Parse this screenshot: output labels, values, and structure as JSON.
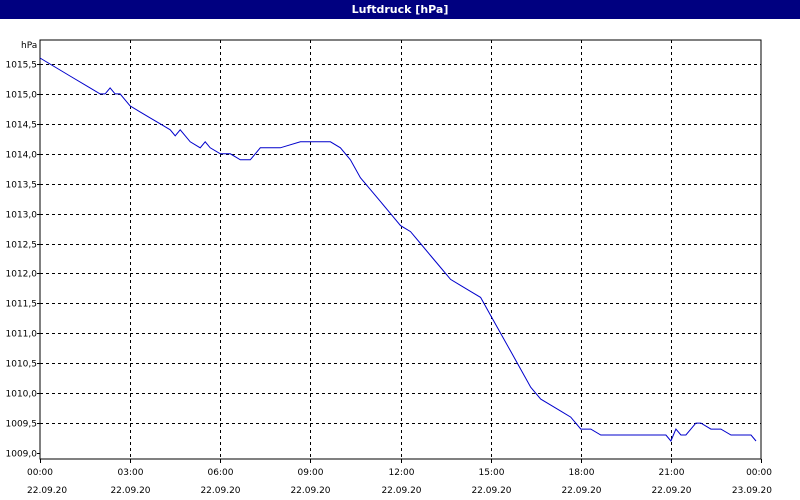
{
  "window": {
    "title": "Luftdruck [hPa]"
  },
  "colors": {
    "title_bar": "#000080",
    "title_text": "#ffffff",
    "series": "#0000cc",
    "grid": "#000000",
    "background": "#ffffff"
  },
  "chart_data": {
    "type": "line",
    "title": "Luftdruck [hPa]",
    "ylabel": "hPa",
    "xlabel": "",
    "grid": true,
    "ylim": [
      1009.0,
      1015.75
    ],
    "xlim": [
      "22.09.20 00:00",
      "23.09.20 00:00"
    ],
    "y_ticks": [
      "1009,0",
      "1009,5",
      "1010,0",
      "1010,5",
      "1011,0",
      "1011,5",
      "1012,0",
      "1012,5",
      "1013,0",
      "1013,5",
      "1014,0",
      "1014,5",
      "1015,0",
      "1015,5"
    ],
    "y_tick_values": [
      1009.0,
      1009.5,
      1010.0,
      1010.5,
      1011.0,
      1011.5,
      1012.0,
      1012.5,
      1013.0,
      1013.5,
      1014.0,
      1014.5,
      1015.0,
      1015.5
    ],
    "x_ticks": [
      {
        "time": "00:00",
        "date": "22.09.20"
      },
      {
        "time": "03:00",
        "date": "22.09.20"
      },
      {
        "time": "06:00",
        "date": "22.09.20"
      },
      {
        "time": "09:00",
        "date": "22.09.20"
      },
      {
        "time": "12:00",
        "date": "22.09.20"
      },
      {
        "time": "15:00",
        "date": "22.09.20"
      },
      {
        "time": "18:00",
        "date": "22.09.20"
      },
      {
        "time": "21:00",
        "date": "22.09.20"
      },
      {
        "time": "00:00",
        "date": "23.09.20"
      }
    ],
    "series": [
      {
        "x": [
          "22.09.20 00:00",
          "22.09.20 00:20",
          "22.09.20 00:40",
          "22.09.20 01:00",
          "22.09.20 01:40",
          "22.09.20 02:00",
          "22.09.20 02:10",
          "22.09.20 02:20",
          "22.09.20 02:30",
          "22.09.20 02:40",
          "22.09.20 03:00",
          "22.09.20 03:20",
          "22.09.20 03:40",
          "22.09.20 04:00",
          "22.09.20 04:20",
          "22.09.20 04:30",
          "22.09.20 04:40",
          "22.09.20 05:00",
          "22.09.20 05:20",
          "22.09.20 05:30",
          "22.09.20 05:40",
          "22.09.20 06:00",
          "22.09.20 06:20",
          "22.09.20 06:40",
          "22.09.20 07:00",
          "22.09.20 07:20",
          "22.09.20 07:40",
          "22.09.20 08:00",
          "22.09.20 08:40",
          "22.09.20 09:00",
          "22.09.20 09:40",
          "22.09.20 10:00",
          "22.09.20 10:20",
          "22.09.20 10:40",
          "22.09.20 11:00",
          "22.09.20 11:20",
          "22.09.20 11:40",
          "22.09.20 12:00",
          "22.09.20 12:20",
          "22.09.20 12:40",
          "22.09.20 13:00",
          "22.09.20 13:20",
          "22.09.20 13:40",
          "22.09.20 14:00",
          "22.09.20 14:20",
          "22.09.20 14:40",
          "22.09.20 15:00",
          "22.09.20 15:20",
          "22.09.20 15:40",
          "22.09.20 16:00",
          "22.09.20 16:20",
          "22.09.20 16:40",
          "22.09.20 17:00",
          "22.09.20 17:20",
          "22.09.20 17:40",
          "22.09.20 18:00",
          "22.09.20 18:20",
          "22.09.20 18:40",
          "22.09.20 19:00",
          "22.09.20 19:40",
          "22.09.20 20:20",
          "22.09.20 20:50",
          "22.09.20 21:00",
          "22.09.20 21:10",
          "22.09.20 21:20",
          "22.09.20 21:30",
          "22.09.20 21:50",
          "22.09.20 22:00",
          "22.09.20 22:20",
          "22.09.20 22:40",
          "22.09.20 23:00",
          "22.09.20 23:20",
          "22.09.20 23:40",
          "22.09.20 23:50"
        ],
        "values": [
          1015.6,
          1015.5,
          1015.4,
          1015.3,
          1015.1,
          1015.0,
          1015.0,
          1015.1,
          1015.0,
          1015.0,
          1014.8,
          1014.7,
          1014.6,
          1014.5,
          1014.4,
          1014.3,
          1014.4,
          1014.2,
          1014.1,
          1014.2,
          1014.1,
          1014.0,
          1014.0,
          1013.9,
          1013.9,
          1014.1,
          1014.1,
          1014.1,
          1014.2,
          1014.2,
          1014.2,
          1014.1,
          1013.9,
          1013.6,
          1013.4,
          1013.2,
          1013.0,
          1012.8,
          1012.7,
          1012.5,
          1012.3,
          1012.1,
          1011.9,
          1011.8,
          1011.7,
          1011.6,
          1011.3,
          1011.0,
          1010.7,
          1010.4,
          1010.1,
          1009.9,
          1009.8,
          1009.7,
          1009.6,
          1009.4,
          1009.4,
          1009.3,
          1009.3,
          1009.3,
          1009.3,
          1009.3,
          1009.2,
          1009.4,
          1009.3,
          1009.3,
          1009.5,
          1009.5,
          1009.4,
          1009.4,
          1009.3,
          1009.3,
          1009.3,
          1009.2
        ]
      }
    ]
  }
}
